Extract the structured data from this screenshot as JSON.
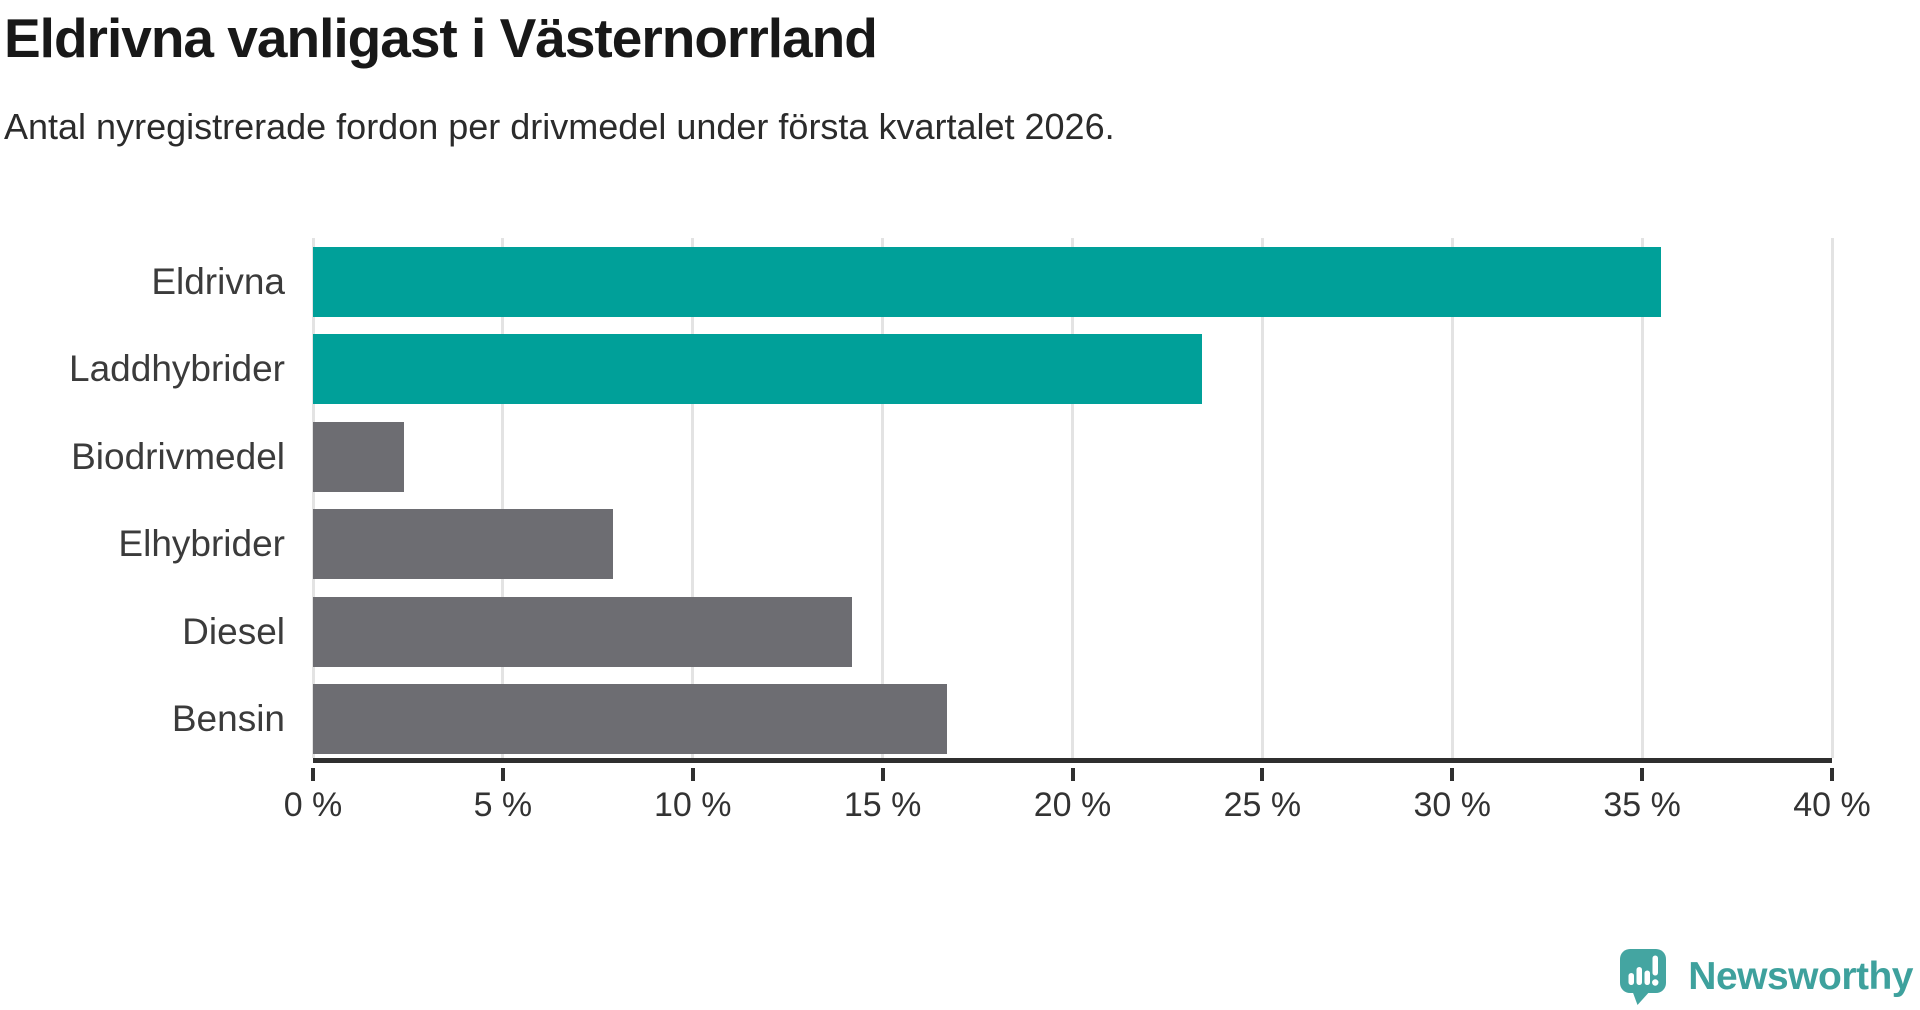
{
  "header": {
    "title": "Eldrivna vanligast i Västernorrland",
    "subtitle": "Antal nyregistrerade fordon per drivmedel under första kvartalet 2026."
  },
  "chart_data": {
    "type": "bar",
    "orientation": "horizontal",
    "title": "Eldrivna vanligast i Västernorrland",
    "subtitle": "Antal nyregistrerade fordon per drivmedel under första kvartalet 2026.",
    "categories": [
      "Eldrivna",
      "Laddhybrider",
      "Biodrivmedel",
      "Elhybrider",
      "Diesel",
      "Bensin"
    ],
    "values": [
      35.5,
      23.4,
      2.4,
      7.9,
      14.2,
      16.7
    ],
    "unit": "%",
    "bar_colors": [
      "#00a099",
      "#00a099",
      "#6d6d72",
      "#6d6d72",
      "#6d6d72",
      "#6d6d72"
    ],
    "highlight_color": "#00a099",
    "default_color": "#6d6d72",
    "xlim": [
      0,
      40
    ],
    "x_ticks": [
      0,
      5,
      10,
      15,
      20,
      25,
      30,
      35,
      40
    ],
    "x_tick_labels": [
      "0 %",
      "5 %",
      "10 %",
      "15 %",
      "20 %",
      "25 %",
      "30 %",
      "35 %",
      "40 %"
    ],
    "grid": true,
    "gridline_color": "#e3e3e3",
    "axis_color": "#2f2f2f",
    "legend": "none"
  },
  "footer": {
    "brand": "Newsworthy",
    "brand_color": "#3ea19d",
    "logo_icon": "newsworthy-speech-bubble-chart-icon",
    "logo_color": "#44a5a1"
  }
}
